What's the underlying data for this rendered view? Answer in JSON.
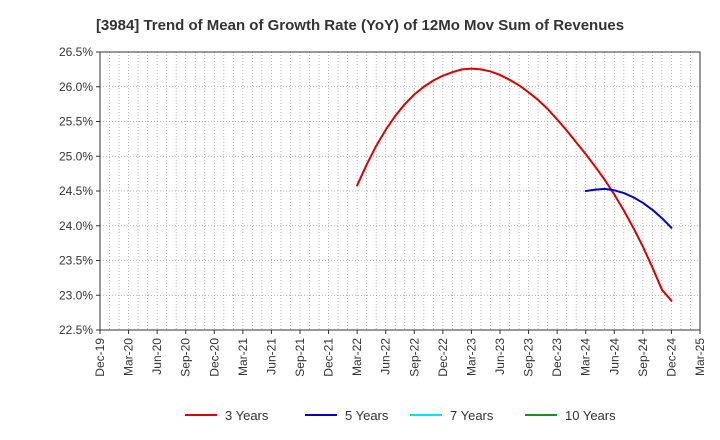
{
  "chart_data": {
    "type": "line",
    "title": "[3984]  Trend of Mean of Growth Rate (YoY) of 12Mo Mov Sum of Revenues",
    "xlabel": "",
    "ylabel": "",
    "ylim": [
      22.5,
      26.5
    ],
    "y_ticks": [
      22.5,
      23.0,
      23.5,
      24.0,
      24.5,
      25.0,
      25.5,
      26.0,
      26.5
    ],
    "y_tick_labels": [
      "22.5%",
      "23.0%",
      "23.5%",
      "24.0%",
      "24.5%",
      "25.0%",
      "25.5%",
      "26.0%",
      "26.5%"
    ],
    "x_tick_labels": [
      "Dec-19",
      "Mar-20",
      "Jun-20",
      "Sep-20",
      "Dec-20",
      "Mar-21",
      "Jun-21",
      "Sep-21",
      "Dec-21",
      "Mar-22",
      "Jun-22",
      "Sep-22",
      "Dec-22",
      "Mar-23",
      "Jun-23",
      "Sep-23",
      "Dec-23",
      "Mar-24",
      "Jun-24",
      "Sep-24",
      "Dec-24",
      "Mar-25"
    ],
    "x_start": "Dec-19",
    "x_months_total": 63,
    "grid": true,
    "legend_position": "bottom",
    "series": [
      {
        "name": "3 Years",
        "color": "#dd0000",
        "points": [
          [
            27,
            24.58
          ],
          [
            28,
            24.88
          ],
          [
            29,
            25.15
          ],
          [
            30,
            25.38
          ],
          [
            31,
            25.58
          ],
          [
            32,
            25.75
          ],
          [
            33,
            25.89
          ],
          [
            34,
            26.0
          ],
          [
            35,
            26.09
          ],
          [
            36,
            26.16
          ],
          [
            37,
            26.21
          ],
          [
            38,
            26.25
          ],
          [
            39,
            26.26
          ],
          [
            40,
            26.25
          ],
          [
            41,
            26.22
          ],
          [
            42,
            26.17
          ],
          [
            43,
            26.1
          ],
          [
            44,
            26.02
          ],
          [
            45,
            25.92
          ],
          [
            46,
            25.81
          ],
          [
            47,
            25.68
          ],
          [
            48,
            25.53
          ],
          [
            49,
            25.37
          ],
          [
            50,
            25.2
          ],
          [
            51,
            25.03
          ],
          [
            52,
            24.85
          ],
          [
            53,
            24.66
          ],
          [
            54,
            24.45
          ],
          [
            55,
            24.22
          ],
          [
            56,
            23.97
          ],
          [
            57,
            23.7
          ],
          [
            58,
            23.4
          ],
          [
            59,
            23.08
          ],
          [
            60,
            22.92
          ]
        ]
      },
      {
        "name": "5 Years",
        "color": "#0000cc",
        "points": [
          [
            51,
            24.5
          ],
          [
            52,
            24.52
          ],
          [
            53,
            24.53
          ],
          [
            54,
            24.51
          ],
          [
            55,
            24.47
          ],
          [
            56,
            24.41
          ],
          [
            57,
            24.33
          ],
          [
            58,
            24.23
          ],
          [
            59,
            24.11
          ],
          [
            60,
            23.97
          ]
        ]
      },
      {
        "name": "7 Years",
        "color": "#00e5ee",
        "points": []
      },
      {
        "name": "10 Years",
        "color": "#228b22",
        "points": []
      }
    ]
  }
}
